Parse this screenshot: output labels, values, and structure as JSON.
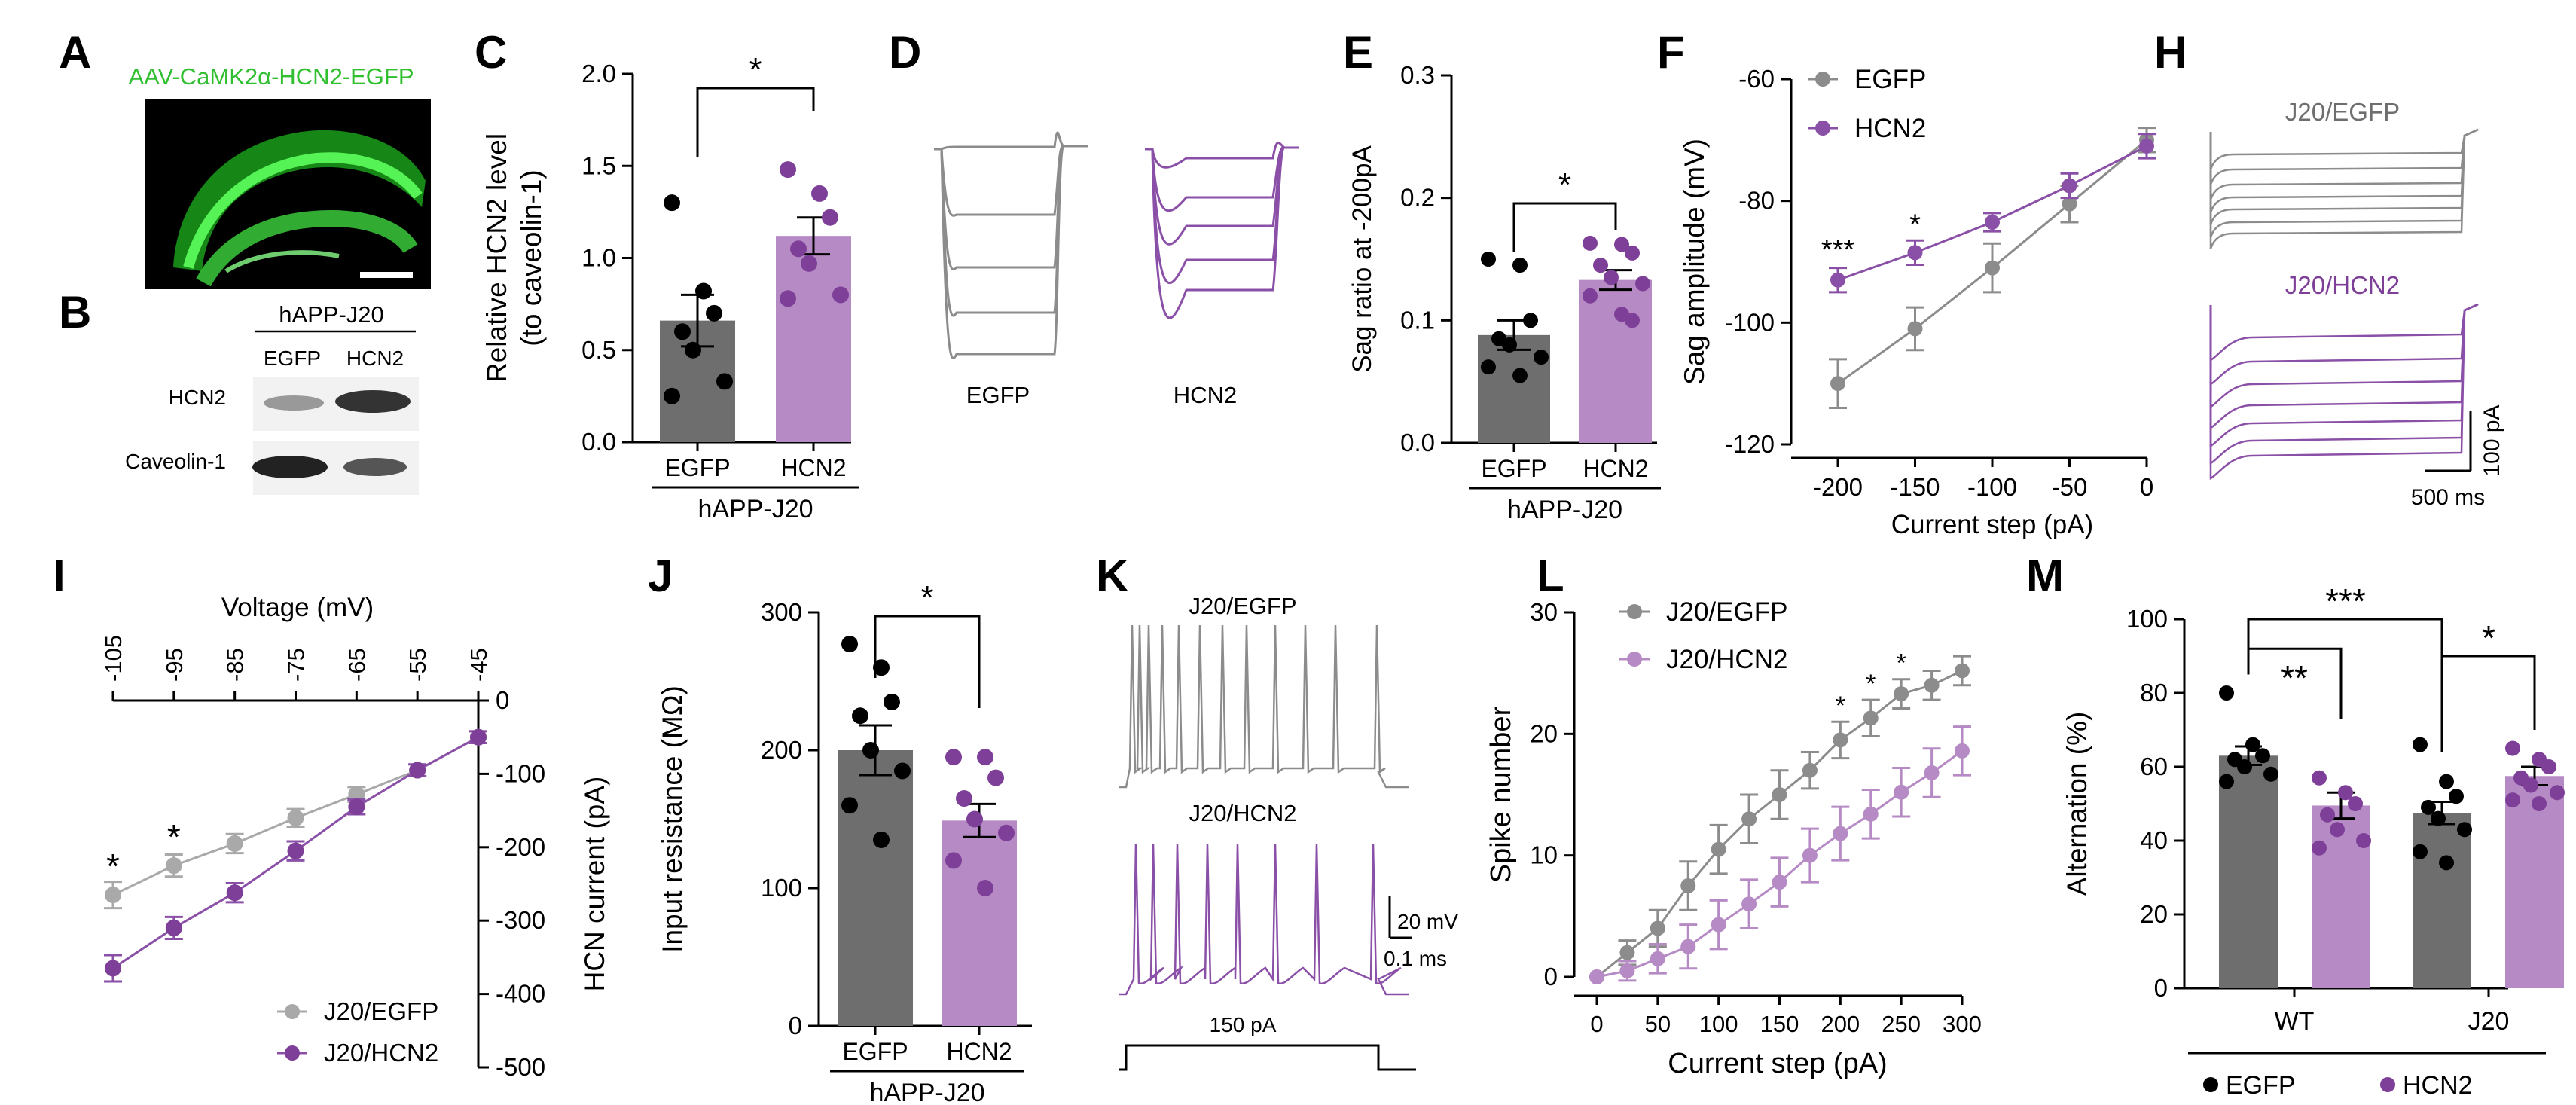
{
  "colors": {
    "egfp_dark": "#6e6e6e",
    "egfp_line": "#8c8c8c",
    "egfp_light": "#a9a9a9",
    "hcn2_dark": "#7e3f98",
    "hcn2_fill": "#b68ac4",
    "hcn2_line": "#8a4fa6",
    "micro_green": "#2fbf2f",
    "black": "#000000"
  },
  "panels": {
    "A": {
      "letter": "A",
      "caption": "AAV-CaMK2α-HCN2-EGFP"
    },
    "B": {
      "letter": "B",
      "group": "hAPP-J20",
      "lanes": [
        "EGFP",
        "HCN2"
      ],
      "rows": [
        "HCN2",
        "Caveolin-1"
      ]
    },
    "C": {
      "letter": "C"
    },
    "D": {
      "letter": "D",
      "labels": [
        "EGFP",
        "HCN2"
      ]
    },
    "E": {
      "letter": "E"
    },
    "F": {
      "letter": "F"
    },
    "H": {
      "letter": "H",
      "labels": [
        "J20/EGFP",
        "J20/HCN2"
      ],
      "scale_y": "100 pA",
      "scale_x": "500 ms"
    },
    "I": {
      "letter": "I"
    },
    "J": {
      "letter": "J"
    },
    "K": {
      "letter": "K",
      "labels": [
        "J20/EGFP",
        "J20/HCN2"
      ],
      "scale_y": "20 mV",
      "scale_x": "0.1 ms",
      "stim": "150 pA"
    },
    "L": {
      "letter": "L"
    },
    "M": {
      "letter": "M"
    }
  },
  "chart_data": [
    {
      "panel": "C",
      "type": "bar",
      "categories": [
        "EGFP",
        "HCN2"
      ],
      "values": [
        0.66,
        1.12
      ],
      "errors": [
        0.14,
        0.1
      ],
      "points": [
        [
          1.3,
          0.82,
          0.7,
          0.6,
          0.5,
          0.33,
          0.25
        ],
        [
          1.48,
          1.35,
          1.22,
          1.05,
          0.97,
          0.8,
          0.78
        ]
      ],
      "ylabel": "Relative HCN2 level (to caveolin-1)",
      "ylim": [
        0,
        2.0
      ],
      "yticks": [
        "0.0",
        "0.5",
        "1.0",
        "1.5",
        "2.0"
      ],
      "group_label": "hAPP-J20",
      "significance": "*"
    },
    {
      "panel": "E",
      "type": "bar",
      "categories": [
        "EGFP",
        "HCN2"
      ],
      "values": [
        0.088,
        0.133
      ],
      "errors": [
        0.012,
        0.008
      ],
      "points": [
        [
          0.15,
          0.145,
          0.1,
          0.085,
          0.08,
          0.07,
          0.062,
          0.055
        ],
        [
          0.163,
          0.162,
          0.155,
          0.145,
          0.135,
          0.13,
          0.12,
          0.105,
          0.1
        ]
      ],
      "ylabel": "Sag ratio at -200pA",
      "ylim": [
        0,
        0.3
      ],
      "yticks": [
        "0.0",
        "0.1",
        "0.2",
        "0.3"
      ],
      "group_label": "hAPP-J20",
      "significance": "*"
    },
    {
      "panel": "F",
      "type": "line",
      "x": [
        -200,
        -150,
        -100,
        -50,
        0
      ],
      "series": [
        {
          "name": "EGFP",
          "values": [
            -110,
            -101,
            -91,
            -80.5,
            -70
          ],
          "errors": [
            4,
            3.5,
            4,
            3,
            2
          ]
        },
        {
          "name": "HCN2",
          "values": [
            -93,
            -88.5,
            -83.5,
            -77.5,
            -71
          ],
          "errors": [
            2,
            2,
            1.5,
            2,
            2
          ]
        }
      ],
      "xlabel": "Current step (pA)",
      "ylabel": "Sag amplitude (mV)",
      "xticks": [
        "-200",
        "-150",
        "-100",
        "-50",
        "0"
      ],
      "yticks": [
        "-60",
        "-80",
        "-100",
        "-120"
      ],
      "xlim": [
        -200,
        0
      ],
      "ylim": [
        -120,
        -60
      ],
      "significance": [
        {
          "x": -200,
          "label": "***"
        },
        {
          "x": -150,
          "label": "*"
        }
      ]
    },
    {
      "panel": "I",
      "type": "line",
      "x": [
        -105,
        -95,
        -85,
        -75,
        -65,
        -55,
        -45
      ],
      "series": [
        {
          "name": "J20/EGFP",
          "values": [
            -265,
            -225,
            -195,
            -160,
            -128,
            -95,
            -50
          ],
          "errors": [
            18,
            15,
            13,
            12,
            10,
            8,
            8
          ]
        },
        {
          "name": "J20/HCN2",
          "values": [
            -365,
            -310,
            -262,
            -205,
            -145,
            -95,
            -50
          ],
          "errors": [
            18,
            15,
            13,
            13,
            10,
            8,
            8
          ]
        }
      ],
      "xlabel": "Voltage (mV)",
      "ylabel": "HCN current (pA)",
      "xticks": [
        "-105",
        "-95",
        "-85",
        "-75",
        "-65",
        "-55",
        "-45"
      ],
      "yticks": [
        "0",
        "-100",
        "-200",
        "-300",
        "-400",
        "-500"
      ],
      "xlim": [
        -105,
        -45
      ],
      "ylim": [
        -500,
        0
      ],
      "significance": [
        {
          "x": -105,
          "label": "*"
        },
        {
          "x": -95,
          "label": "*"
        }
      ]
    },
    {
      "panel": "J",
      "type": "bar",
      "categories": [
        "EGFP",
        "HCN2"
      ],
      "values": [
        200,
        149
      ],
      "errors": [
        18,
        12
      ],
      "points": [
        [
          277,
          260,
          235,
          225,
          200,
          185,
          160,
          135
        ],
        [
          195,
          195,
          180,
          165,
          150,
          140,
          120,
          100
        ]
      ],
      "ylabel": "Input resistance (MΩ)",
      "ylim": [
        0,
        300
      ],
      "yticks": [
        "0",
        "100",
        "200",
        "300"
      ],
      "group_label": "hAPP-J20",
      "significance": "*"
    },
    {
      "panel": "L",
      "type": "line",
      "x": [
        0,
        25,
        50,
        75,
        100,
        125,
        150,
        175,
        200,
        225,
        250,
        275,
        300
      ],
      "series": [
        {
          "name": "J20/EGFP",
          "values": [
            0,
            2,
            4,
            7.5,
            10.5,
            13,
            15,
            17,
            19.5,
            21.3,
            23.3,
            24,
            25.2
          ],
          "errors": [
            0,
            1,
            1.5,
            2,
            2,
            2,
            2,
            1.5,
            1.5,
            1.5,
            1.2,
            1.2,
            1.2
          ]
        },
        {
          "name": "J20/HCN2",
          "values": [
            0,
            0.5,
            1.5,
            2.5,
            4.3,
            6,
            7.8,
            10,
            11.8,
            13.4,
            15.2,
            16.8,
            18.6
          ],
          "errors": [
            0,
            0.8,
            1.2,
            1.8,
            2,
            2,
            2,
            2.2,
            2.2,
            2,
            2,
            2,
            2
          ]
        }
      ],
      "xlabel": "Current step (pA)",
      "ylabel": "Spike number",
      "xticks": [
        "0",
        "50",
        "100",
        "150",
        "200",
        "250",
        "300"
      ],
      "yticks": [
        "0",
        "10",
        "20",
        "30"
      ],
      "xlim": [
        0,
        300
      ],
      "ylim": [
        0,
        30
      ],
      "significance": [
        {
          "x": 200,
          "label": "*"
        },
        {
          "x": 225,
          "label": "*"
        },
        {
          "x": 250,
          "label": "*"
        }
      ]
    },
    {
      "panel": "M",
      "type": "bar",
      "categories": [
        "WT",
        "J20"
      ],
      "series": [
        {
          "name": "EGFP",
          "values": [
            63,
            47.5
          ],
          "errors": [
            2.5,
            3
          ]
        },
        {
          "name": "HCN2",
          "values": [
            49.5,
            57.5
          ],
          "errors": [
            3.5,
            2.5
          ]
        }
      ],
      "points": [
        [
          [
            80,
            66,
            63,
            62,
            60,
            58,
            56
          ],
          [
            57,
            53,
            50,
            47,
            43,
            40,
            38
          ]
        ],
        [
          [
            66,
            56,
            52,
            49,
            46,
            43,
            37,
            34
          ],
          [
            65,
            62,
            60,
            57,
            55,
            53,
            51,
            50
          ]
        ]
      ],
      "ylabel": "Alternation (%)",
      "ylim": [
        0,
        100
      ],
      "yticks": [
        "0",
        "20",
        "40",
        "60",
        "80",
        "100"
      ],
      "significance": [
        {
          "between": "WT EGFP vs WT HCN2",
          "label": "**"
        },
        {
          "between": "WT vs J20",
          "label": "***"
        },
        {
          "between": "J20 EGFP vs J20 HCN2",
          "label": "*"
        }
      ]
    }
  ]
}
